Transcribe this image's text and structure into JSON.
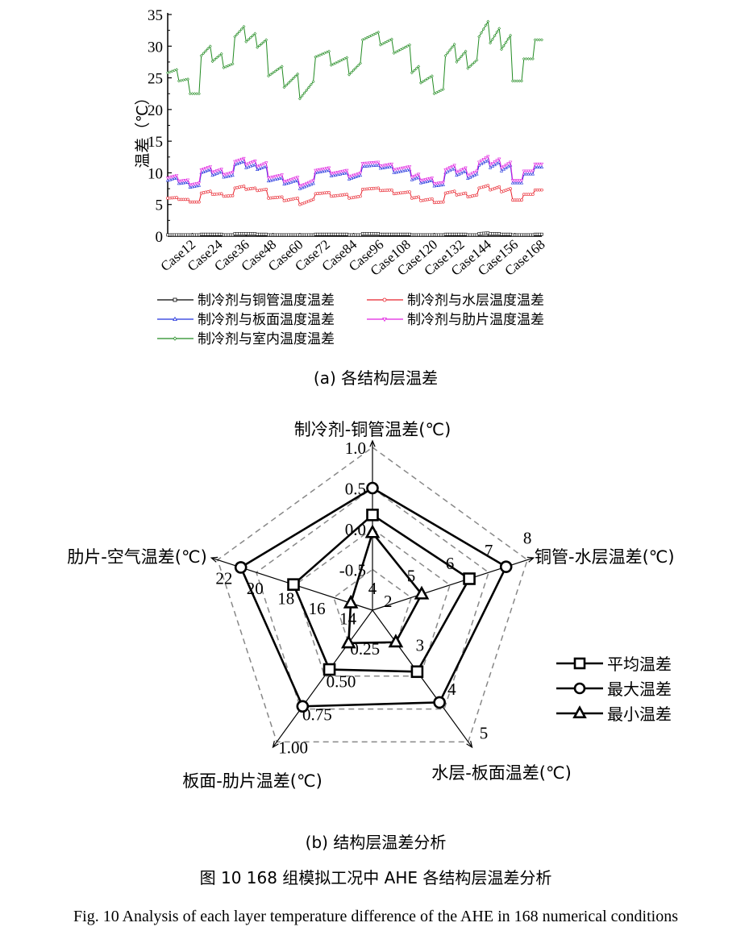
{
  "chart_data": [
    {
      "type": "line",
      "ylabel": "温差（℃）",
      "ylim": [
        0,
        35
      ],
      "yticks": [
        "0",
        "5",
        "10",
        "15",
        "20",
        "25",
        "30",
        "35"
      ],
      "xlim": [
        1,
        168
      ],
      "xtick_cases": [
        12,
        24,
        36,
        48,
        60,
        72,
        84,
        96,
        108,
        120,
        132,
        144,
        156,
        168
      ],
      "xtick_labels": [
        "Case12",
        "Case24",
        "Case36",
        "Case48",
        "Case60",
        "Case72",
        "Case84",
        "Case96",
        "Case108",
        "Case120",
        "Case132",
        "Case144",
        "Case156",
        "Case168"
      ],
      "legend_position": "bottom",
      "segment_cases": [
        [
          1,
          5
        ],
        [
          6,
          10
        ],
        [
          11,
          15
        ],
        [
          16,
          20
        ],
        [
          21,
          25
        ],
        [
          26,
          30
        ],
        [
          31,
          35
        ],
        [
          36,
          40
        ],
        [
          41,
          45
        ],
        [
          46,
          52
        ],
        [
          53,
          59
        ],
        [
          60,
          66
        ],
        [
          67,
          73
        ],
        [
          74,
          81
        ],
        [
          82,
          87
        ],
        [
          88,
          95
        ],
        [
          96,
          101
        ],
        [
          102,
          109
        ],
        [
          110,
          113
        ],
        [
          114,
          119
        ],
        [
          120,
          124
        ],
        [
          125,
          129
        ],
        [
          130,
          134
        ],
        [
          135,
          139
        ],
        [
          140,
          144
        ],
        [
          145,
          149
        ],
        [
          150,
          154
        ],
        [
          155,
          159
        ],
        [
          160,
          164
        ],
        [
          165,
          168
        ]
      ],
      "series": [
        {
          "name": "制冷剂与铜管温度温差",
          "color": "#000000",
          "marker": "square",
          "segments": [
            [
              0.2,
              0.2
            ],
            [
              0.2,
              0.2
            ],
            [
              0.2,
              0.2
            ],
            [
              0.3,
              0.3
            ],
            [
              0.3,
              0.3
            ],
            [
              0.2,
              0.2
            ],
            [
              0.4,
              0.4
            ],
            [
              0.4,
              0.4
            ],
            [
              0.3,
              0.3
            ],
            [
              0.2,
              0.2
            ],
            [
              0.2,
              0.2
            ],
            [
              0.2,
              0.2
            ],
            [
              0.3,
              0.3
            ],
            [
              0.3,
              0.3
            ],
            [
              0.2,
              0.2
            ],
            [
              0.4,
              0.4
            ],
            [
              0.3,
              0.3
            ],
            [
              0.3,
              0.3
            ],
            [
              0.2,
              0.2
            ],
            [
              0.2,
              0.2
            ],
            [
              0.2,
              0.2
            ],
            [
              0.3,
              0.3
            ],
            [
              0.3,
              0.3
            ],
            [
              0.2,
              0.2
            ],
            [
              0.4,
              0.5
            ],
            [
              0.4,
              0.4
            ],
            [
              0.3,
              0.3
            ],
            [
              0.2,
              0.2
            ],
            [
              0.2,
              0.2
            ],
            [
              0.3,
              0.3
            ]
          ]
        },
        {
          "name": "制冷剂与水层温度温差",
          "color": "#e8202a",
          "marker": "circle",
          "segments": [
            [
              6.0,
              6.1
            ],
            [
              5.8,
              5.8
            ],
            [
              5.4,
              5.4
            ],
            [
              6.8,
              7.1
            ],
            [
              6.6,
              6.7
            ],
            [
              6.3,
              6.4
            ],
            [
              7.6,
              7.9
            ],
            [
              7.4,
              7.6
            ],
            [
              7.2,
              7.4
            ],
            [
              6.0,
              6.2
            ],
            [
              5.6,
              6.0
            ],
            [
              5.0,
              5.8
            ],
            [
              6.7,
              6.9
            ],
            [
              6.3,
              6.6
            ],
            [
              6.0,
              6.3
            ],
            [
              7.4,
              7.6
            ],
            [
              7.2,
              7.3
            ],
            [
              6.7,
              7.0
            ],
            [
              6.0,
              6.2
            ],
            [
              5.6,
              5.9
            ],
            [
              5.3,
              5.4
            ],
            [
              6.8,
              7.1
            ],
            [
              6.5,
              6.8
            ],
            [
              6.2,
              6.5
            ],
            [
              7.6,
              8.0
            ],
            [
              7.3,
              7.8
            ],
            [
              7.0,
              7.5
            ],
            [
              5.7,
              5.7
            ],
            [
              6.6,
              6.6
            ],
            [
              7.3,
              7.3
            ]
          ]
        },
        {
          "name": "制冷剂与板面温度温差",
          "color": "#2233dd",
          "marker": "triangle",
          "segments": [
            [
              8.8,
              9.2
            ],
            [
              8.3,
              8.5
            ],
            [
              7.7,
              8.0
            ],
            [
              10.0,
              10.5
            ],
            [
              9.6,
              10.2
            ],
            [
              9.3,
              9.6
            ],
            [
              11.3,
              11.8
            ],
            [
              10.8,
              11.3
            ],
            [
              10.5,
              11.0
            ],
            [
              8.7,
              9.2
            ],
            [
              8.2,
              8.8
            ],
            [
              7.5,
              8.3
            ],
            [
              10.0,
              10.4
            ],
            [
              9.5,
              10.0
            ],
            [
              9.0,
              9.6
            ],
            [
              11.0,
              11.2
            ],
            [
              10.7,
              11.0
            ],
            [
              10.0,
              10.5
            ],
            [
              8.9,
              9.3
            ],
            [
              8.4,
              8.8
            ],
            [
              7.9,
              8.1
            ],
            [
              10.0,
              10.7
            ],
            [
              9.6,
              10.3
            ],
            [
              9.1,
              9.8
            ],
            [
              11.2,
              12.0
            ],
            [
              10.8,
              11.7
            ],
            [
              10.3,
              11.2
            ],
            [
              8.4,
              8.4
            ],
            [
              9.8,
              9.8
            ],
            [
              10.9,
              10.9
            ]
          ]
        },
        {
          "name": "制冷剂与肋片温度温差",
          "color": "#e020e0",
          "marker": "down-triangle",
          "segments": [
            [
              9.2,
              9.6
            ],
            [
              8.7,
              8.9
            ],
            [
              8.1,
              8.4
            ],
            [
              10.5,
              11.0
            ],
            [
              10.1,
              10.6
            ],
            [
              9.7,
              10.1
            ],
            [
              11.8,
              12.3
            ],
            [
              11.3,
              11.9
            ],
            [
              11.0,
              11.6
            ],
            [
              9.2,
              9.7
            ],
            [
              8.6,
              9.3
            ],
            [
              7.9,
              8.8
            ],
            [
              10.4,
              10.8
            ],
            [
              9.9,
              10.4
            ],
            [
              9.4,
              10.0
            ],
            [
              11.5,
              11.7
            ],
            [
              11.1,
              11.4
            ],
            [
              10.5,
              11.0
            ],
            [
              9.3,
              9.8
            ],
            [
              8.8,
              9.2
            ],
            [
              8.3,
              8.5
            ],
            [
              10.5,
              11.2
            ],
            [
              10.1,
              10.8
            ],
            [
              9.6,
              10.3
            ],
            [
              11.7,
              12.6
            ],
            [
              11.3,
              12.2
            ],
            [
              10.8,
              11.7
            ],
            [
              8.8,
              8.8
            ],
            [
              10.3,
              10.3
            ],
            [
              11.4,
              11.4
            ]
          ]
        },
        {
          "name": "制冷剂与室内温度温差",
          "color": "#228b22",
          "marker": "diamond",
          "segments": [
            [
              25.8,
              26.3
            ],
            [
              24.5,
              24.8
            ],
            [
              22.5,
              22.5
            ],
            [
              28.5,
              30.0
            ],
            [
              27.6,
              28.8
            ],
            [
              26.6,
              27.2
            ],
            [
              31.5,
              33.1
            ],
            [
              30.7,
              32.0
            ],
            [
              29.8,
              31.0
            ],
            [
              25.3,
              26.8
            ],
            [
              23.5,
              25.6
            ],
            [
              21.7,
              24.4
            ],
            [
              28.3,
              29.2
            ],
            [
              27.0,
              28.2
            ],
            [
              25.5,
              27.3
            ],
            [
              31.0,
              32.2
            ],
            [
              30.2,
              31.1
            ],
            [
              28.9,
              30.2
            ],
            [
              25.8,
              26.8
            ],
            [
              24.2,
              25.3
            ],
            [
              22.5,
              23.2
            ],
            [
              28.5,
              30.3
            ],
            [
              27.5,
              29.2
            ],
            [
              26.5,
              27.8
            ],
            [
              31.5,
              33.9
            ],
            [
              30.5,
              32.8
            ],
            [
              29.5,
              31.7
            ],
            [
              24.5,
              24.5
            ],
            [
              28.0,
              28.0
            ],
            [
              31.0,
              31.0
            ]
          ]
        }
      ]
    },
    {
      "type": "radar",
      "legend_position": "right",
      "axes": [
        {
          "label": "制冷剂-铜管温差(℃)",
          "range": [
            -1.0,
            1.0
          ],
          "ticks": [
            -0.5,
            0.0,
            0.5,
            1.0
          ],
          "tick_labels": [
            "-0.5",
            "0.0",
            "0.5",
            "1.0"
          ]
        },
        {
          "label": "铜管-水层温差(℃)",
          "range": [
            4,
            8
          ],
          "ticks": [
            4,
            5,
            6,
            7,
            8
          ],
          "tick_labels": [
            "4",
            "5",
            "6",
            "7",
            "8"
          ]
        },
        {
          "label": "水层-板面温差(℃)",
          "range": [
            2,
            5
          ],
          "ticks": [
            2,
            3,
            4,
            5
          ],
          "tick_labels": [
            "2",
            "3",
            "4",
            "5"
          ]
        },
        {
          "label": "板面-肋片温差(℃)",
          "range": [
            0,
            1.0
          ],
          "ticks": [
            0.25,
            0.5,
            0.75,
            1.0
          ],
          "tick_labels": [
            "0.25",
            "0.50",
            "0.75",
            "1.00"
          ]
        },
        {
          "label": "肋片-空气温差(℃)",
          "range": [
            12,
            22
          ],
          "ticks": [
            14,
            16,
            18,
            20,
            22
          ],
          "tick_labels": [
            "14",
            "16",
            "18",
            "20",
            "22"
          ]
        }
      ],
      "series": [
        {
          "name": "平均温差",
          "marker": "square",
          "values": [
            0.17,
            6.5,
            3.4,
            0.45,
            17.1
          ]
        },
        {
          "name": "最大温差",
          "marker": "circle",
          "values": [
            0.5,
            7.45,
            4.1,
            0.73,
            20.5
          ]
        },
        {
          "name": "最小温差",
          "marker": "triangle",
          "values": [
            -0.05,
            5.27,
            2.73,
            0.25,
            13.4
          ]
        }
      ]
    }
  ],
  "captions": {
    "a": "(a)  各结构层温差",
    "b": "(b)  结构层温差分析",
    "figure_cn": "图 10 168 组模拟工况中 AHE 各结构层温差分析",
    "figure_en": "Fig. 10 Analysis of each layer temperature difference of the AHE in 168 numerical conditions"
  }
}
